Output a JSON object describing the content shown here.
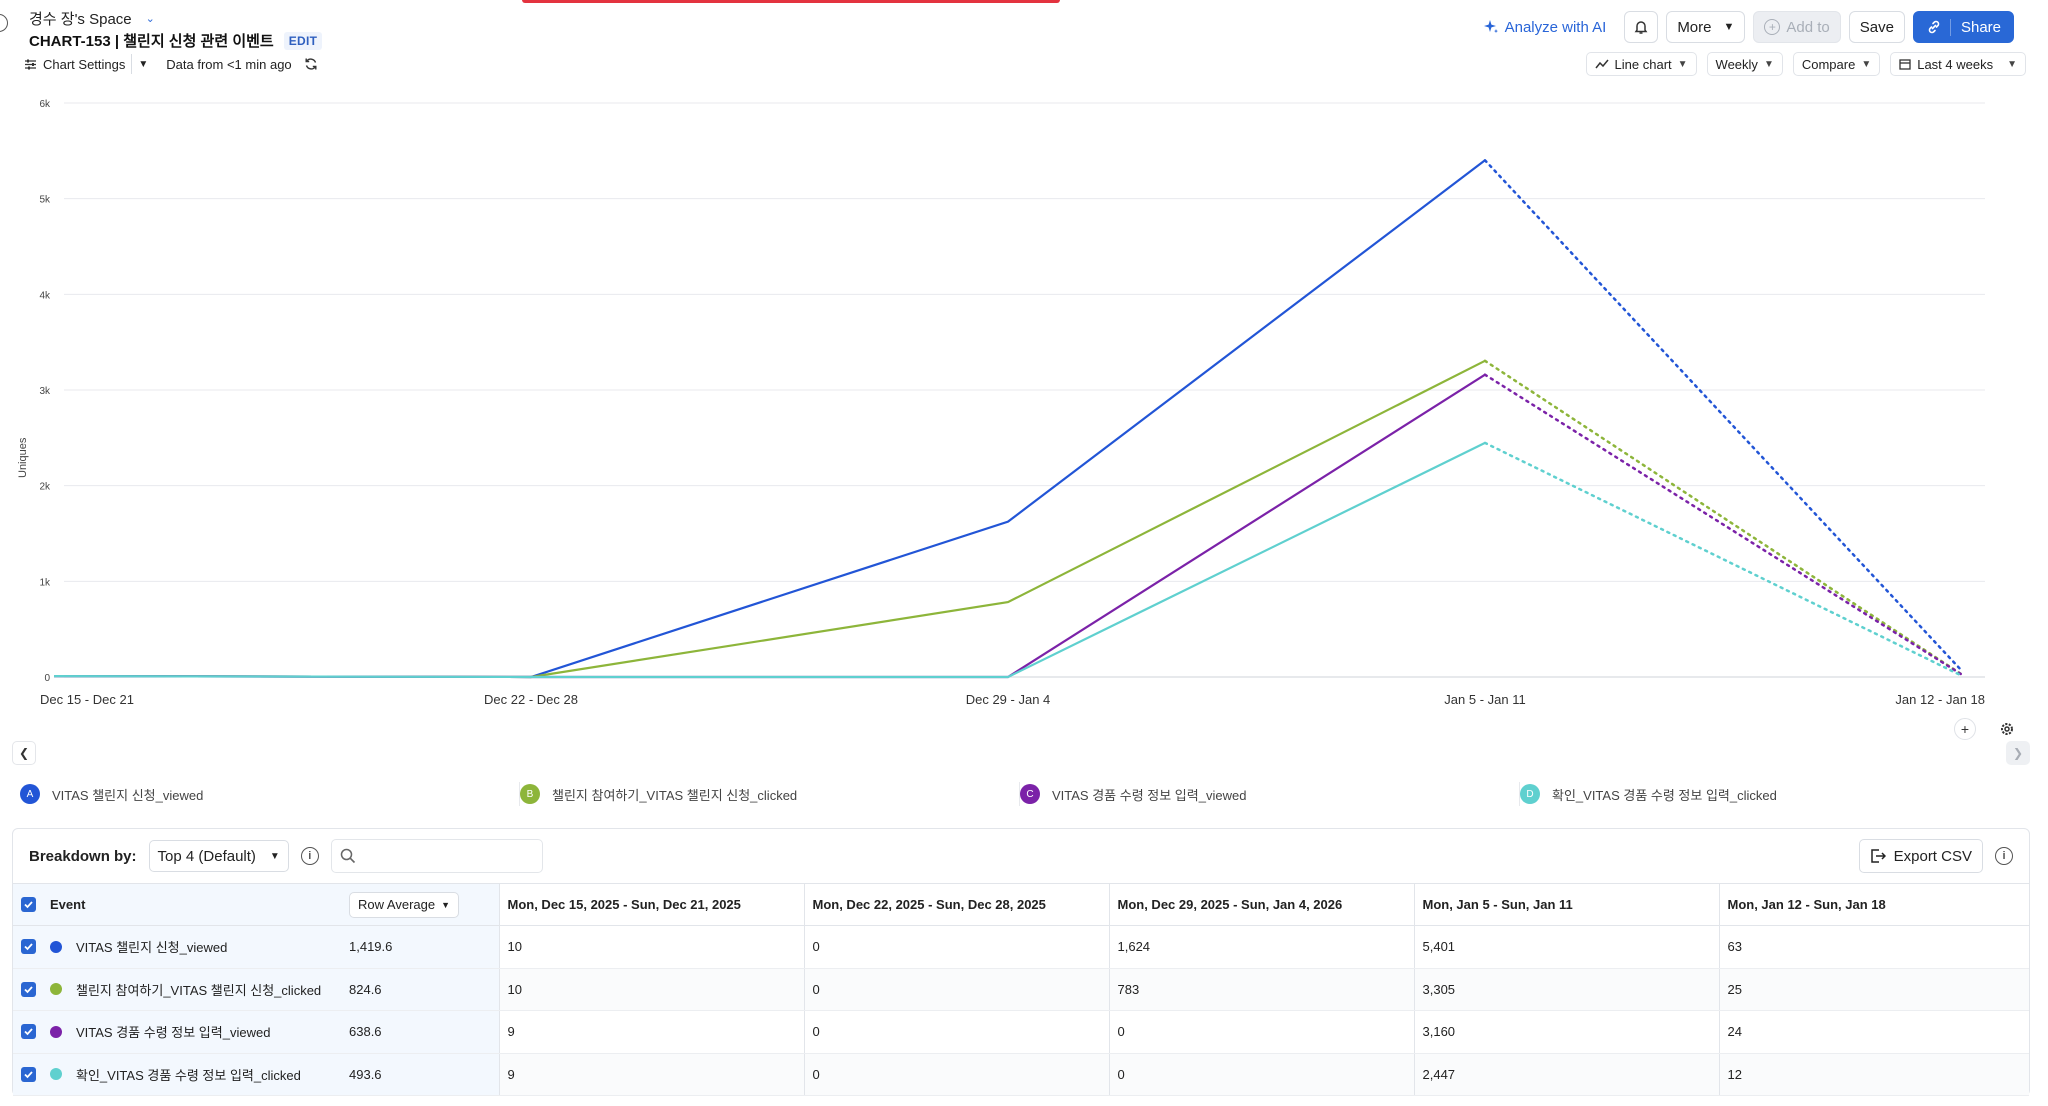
{
  "header": {
    "space_name": "경수 장's Space",
    "chart_title": "CHART-153 | 챌린지 신청 관련 이벤트",
    "edit_label": "EDIT",
    "analyze_label": "Analyze with AI",
    "more_label": "More",
    "add_to_label": "Add to",
    "save_label": "Save",
    "share_label": "Share"
  },
  "toolbar": {
    "chart_settings_label": "Chart Settings",
    "data_freshness": "Data from <1 min ago",
    "chart_type_label": "Line chart",
    "interval_label": "Weekly",
    "compare_label": "Compare",
    "range_label": "Last 4 weeks"
  },
  "chart_data": {
    "type": "line",
    "categories": [
      "Dec 15 - Dec 21",
      "Dec 22 - Dec 28",
      "Dec 29 - Jan 4",
      "Jan 5 - Jan 11",
      "Jan 12 - Jan 18"
    ],
    "ylabel": "Uniques",
    "ylim": [
      0,
      6000
    ],
    "yticks": [
      0,
      1000,
      2000,
      3000,
      4000,
      5000,
      6000
    ],
    "ytick_labels": [
      "0",
      "1k",
      "2k",
      "3k",
      "4k",
      "5k",
      "6k"
    ],
    "incomplete_last_period": true,
    "grid": true,
    "series": [
      {
        "name": "VITAS 챌린지 신청_viewed",
        "letter": "A",
        "color": "#2255d6",
        "values": [
          10,
          0,
          1624,
          5401,
          63
        ]
      },
      {
        "name": "챌린지 참여하기_VITAS 챌린지 신청_clicked",
        "letter": "B",
        "color": "#8db53a",
        "values": [
          10,
          0,
          783,
          3305,
          25
        ]
      },
      {
        "name": "VITAS 경품 수령 정보 입력_viewed",
        "letter": "C",
        "color": "#7b22a8",
        "values": [
          9,
          0,
          0,
          3160,
          24
        ]
      },
      {
        "name": "확인_VITAS 경품 수령 정보 입력_clicked",
        "letter": "D",
        "color": "#5fd0cf",
        "values": [
          9,
          0,
          0,
          2447,
          12
        ]
      }
    ]
  },
  "breakdown": {
    "label": "Breakdown by:",
    "selected": "Top 4 (Default)",
    "export_label": "Export CSV"
  },
  "table": {
    "event_header": "Event",
    "metric_label": "Row Average",
    "columns": [
      "Mon, Dec 15, 2025 - Sun, Dec 21, 2025",
      "Mon, Dec 22, 2025 - Sun, Dec 28, 2025",
      "Mon, Dec 29, 2025 - Sun, Jan 4, 2026",
      "Mon, Jan 5 - Sun, Jan 11",
      "Mon, Jan 12 - Sun, Jan 18"
    ],
    "rows": [
      {
        "event": "VITAS 챌린지 신청_viewed",
        "avg": "1,419.6",
        "cells": [
          "10",
          "0",
          "1,624",
          "5,401",
          "63"
        ]
      },
      {
        "event": "챌린지 참여하기_VITAS 챌린지 신청_clicked",
        "avg": "824.6",
        "cells": [
          "10",
          "0",
          "783",
          "3,305",
          "25"
        ]
      },
      {
        "event": "VITAS 경품 수령 정보 입력_viewed",
        "avg": "638.6",
        "cells": [
          "9",
          "0",
          "0",
          "3,160",
          "24"
        ]
      },
      {
        "event": "확인_VITAS 경품 수령 정보 입력_clicked",
        "avg": "493.6",
        "cells": [
          "9",
          "0",
          "0",
          "2,447",
          "12"
        ]
      }
    ]
  }
}
